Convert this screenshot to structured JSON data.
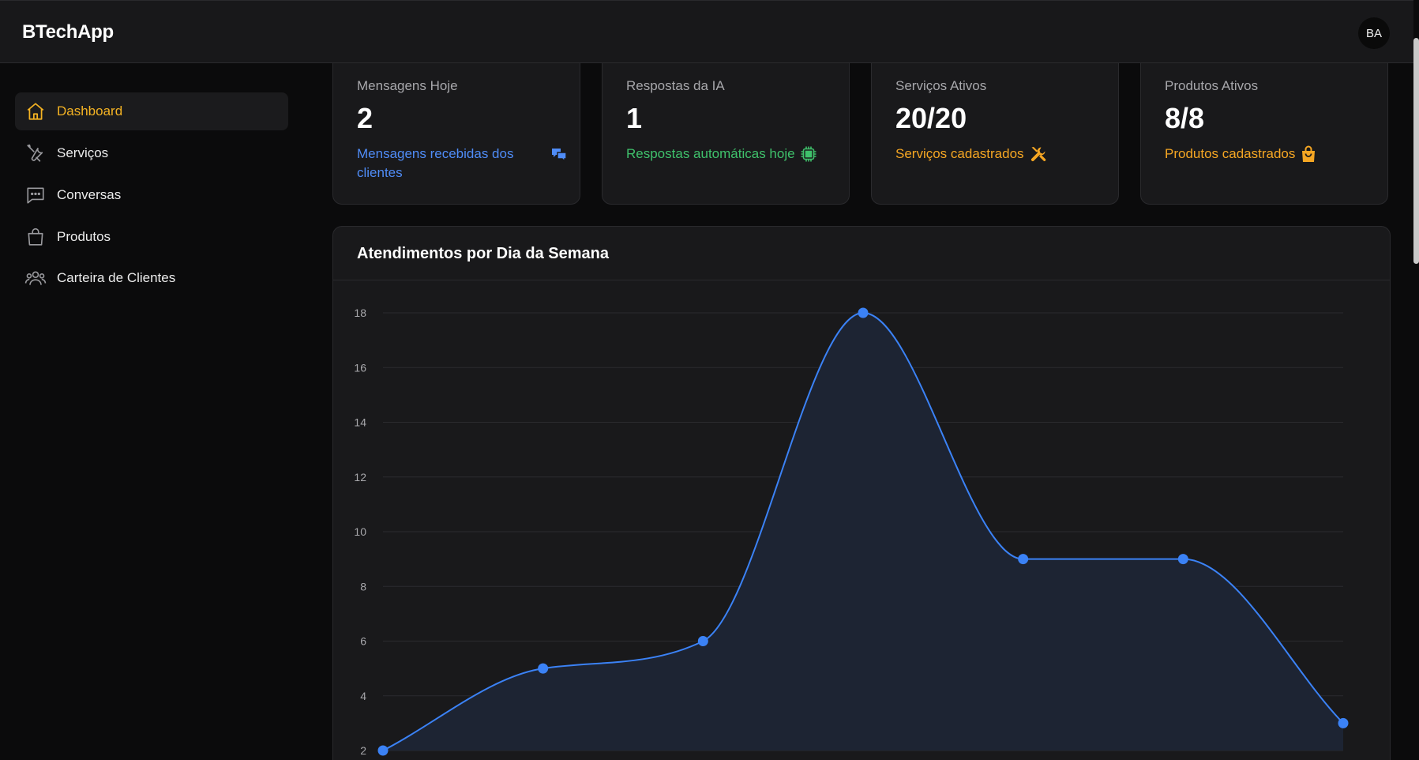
{
  "header": {
    "brand": "BTechApp",
    "avatar_initials": "BA"
  },
  "sidebar": {
    "items": [
      {
        "label": "Dashboard",
        "icon": "home-icon",
        "active": true
      },
      {
        "label": "Serviços",
        "icon": "tools-icon",
        "active": false
      },
      {
        "label": "Conversas",
        "icon": "chat-icon",
        "active": false
      },
      {
        "label": "Produtos",
        "icon": "bag-icon",
        "active": false
      },
      {
        "label": "Carteira de Clientes",
        "icon": "users-icon",
        "active": false
      }
    ]
  },
  "cards": [
    {
      "title": "Mensagens Hoje",
      "value": "2",
      "subtitle": "Mensagens recebidas dos clientes",
      "icon": "chat-bubbles-icon",
      "color": "#4f8cf7"
    },
    {
      "title": "Respostas da IA",
      "value": "1",
      "subtitle": "Respostas automáticas hoje",
      "icon": "chip-icon",
      "color": "#3fc06b"
    },
    {
      "title": "Serviços Ativos",
      "value": "20/20",
      "subtitle": "Serviços cadastrados",
      "icon": "tools-icon",
      "color": "#f5a623"
    },
    {
      "title": "Produtos Ativos",
      "value": "8/8",
      "subtitle": "Produtos cadastrados",
      "icon": "bag-icon",
      "color": "#f5a623"
    }
  ],
  "colors": {
    "accent": "#f5b323",
    "line": "#3b82f6"
  },
  "chart": {
    "title": "Atendimentos por Dia da Semana"
  },
  "chart_data": {
    "type": "area",
    "values": [
      2,
      5,
      6,
      18,
      9,
      9,
      3
    ],
    "y_ticks": [
      2,
      4,
      6,
      8,
      10,
      12,
      14,
      16,
      18
    ],
    "ylim": [
      2,
      18
    ],
    "grid": true
  }
}
